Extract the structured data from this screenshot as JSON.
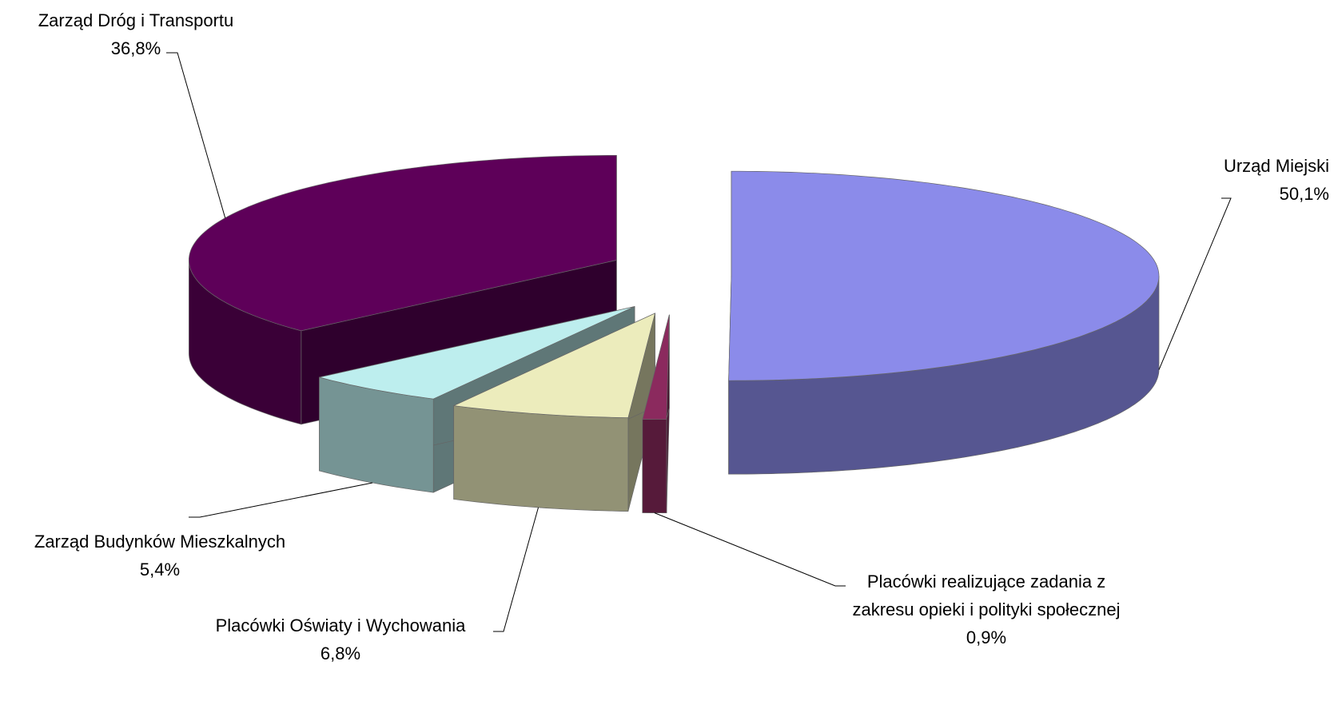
{
  "chart_data": {
    "type": "pie3d",
    "categories": [
      "Urząd Miejski",
      "Placówki realizujące zadania z zakresu opieki i polityki społecznej",
      "Placówki Oświaty i Wychowania",
      "Zarząd Budynków Mieszkalnych",
      "Zarząd Dróg i Transportu"
    ],
    "values": [
      50.1,
      0.9,
      6.8,
      5.4,
      36.8
    ],
    "value_labels": [
      "50,1%",
      "0,9%",
      "6,8%",
      "5,4%",
      "36,8%"
    ],
    "colors": [
      "#8b8bea",
      "#8b2a5e",
      "#ececbc",
      "#bdeeee",
      "#5e0059"
    ]
  }
}
